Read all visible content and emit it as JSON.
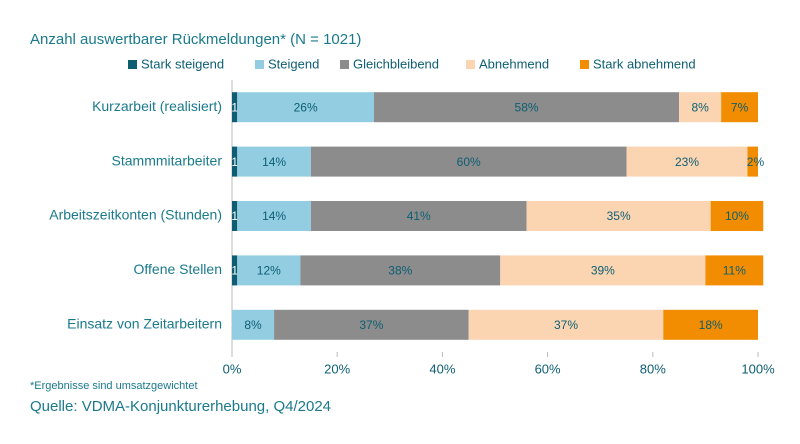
{
  "chart_data": {
    "type": "stacked-bar-horizontal",
    "title": "Anzahl auswertbarer Rückmeldungen* (N = 1021)",
    "note": "*Ergebnisse sind umsatzgewichtet",
    "source": "Quelle: VDMA-Konjunkturerhebung, Q4/2024",
    "categories": [
      "Kurzarbeit (realisiert)",
      "Stammmitarbeiter",
      "Arbeitszeitkonten (Stunden)",
      "Offene Stellen",
      "Einsatz von Zeitarbeitern"
    ],
    "series": [
      {
        "name": "Stark steigend",
        "color": "#0d5e73",
        "values": [
          1,
          1,
          1,
          1,
          0
        ],
        "value_labels": [
          "1%",
          "1%",
          "1%",
          "1%",
          "0%"
        ]
      },
      {
        "name": "Steigend",
        "color": "#92cde2",
        "values": [
          26,
          14,
          14,
          12,
          8
        ],
        "value_labels": [
          "26%",
          "14%",
          "14%",
          "12%",
          "8%"
        ]
      },
      {
        "name": "Gleichbleibend",
        "color": "#8c8c8c",
        "values": [
          58,
          60,
          41,
          38,
          37
        ],
        "value_labels": [
          "58%",
          "60%",
          "41%",
          "38%",
          "37%"
        ]
      },
      {
        "name": "Abnehmend",
        "color": "#fbd5b2",
        "values": [
          8,
          23,
          35,
          39,
          37
        ],
        "value_labels": [
          "8%",
          "23%",
          "35%",
          "39%",
          "37%"
        ]
      },
      {
        "name": "Stark abnehmend",
        "color": "#f28c00",
        "values": [
          7,
          2,
          10,
          11,
          18
        ],
        "value_labels": [
          "7%",
          "2%",
          "10%",
          "11%",
          "18%"
        ]
      }
    ],
    "xlim": [
      0,
      100
    ],
    "xticks": [
      {
        "value": 0,
        "label": "0%"
      },
      {
        "value": 20,
        "label": "20%"
      },
      {
        "value": 40,
        "label": "40%"
      },
      {
        "value": 60,
        "label": "60%"
      },
      {
        "value": 80,
        "label": "80%"
      },
      {
        "value": 100,
        "label": "100%"
      }
    ],
    "legend": "top"
  }
}
